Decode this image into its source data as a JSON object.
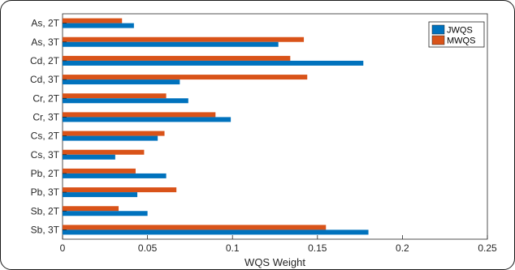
{
  "chart_data": {
    "type": "bar",
    "orientation": "horizontal",
    "categories": [
      "As, 2T",
      "As, 3T",
      "Cd, 2T",
      "Cd, 3T",
      "Cr, 2T",
      "Cr, 3T",
      "Cs, 2T",
      "Cs, 3T",
      "Pb, 2T",
      "Pb, 3T",
      "Sb, 2T",
      "Sb, 3T"
    ],
    "series": [
      {
        "name": "JWQS",
        "color": "#0072BD",
        "values": [
          0.042,
          0.127,
          0.177,
          0.069,
          0.074,
          0.099,
          0.056,
          0.031,
          0.061,
          0.044,
          0.05,
          0.18
        ]
      },
      {
        "name": "MWQS",
        "color": "#D95319",
        "values": [
          0.035,
          0.142,
          0.134,
          0.144,
          0.061,
          0.09,
          0.06,
          0.048,
          0.043,
          0.067,
          0.033,
          0.155
        ]
      }
    ],
    "xlabel": "WQS Weight",
    "ylabel": "",
    "title": "",
    "xlim": [
      0,
      0.25
    ],
    "xticks": [
      "0",
      "0.05",
      "0.1",
      "0.15",
      "0.2",
      "0.25"
    ],
    "grid": false,
    "legend_position": "top-right"
  }
}
